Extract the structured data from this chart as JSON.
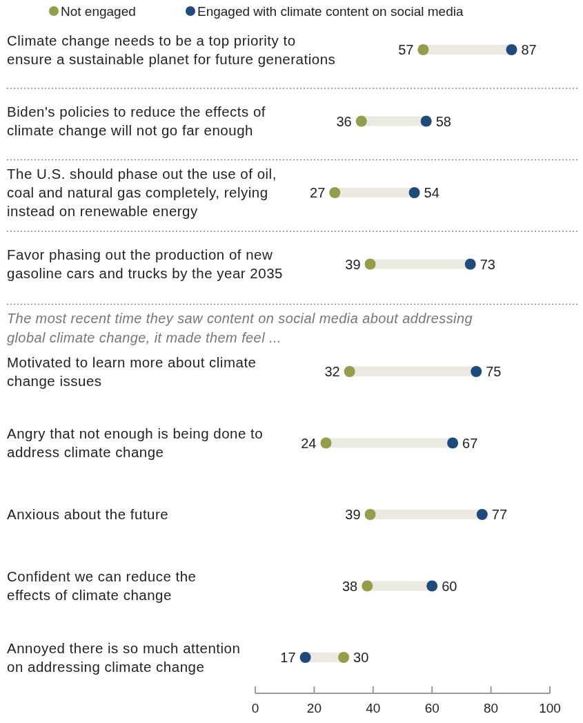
{
  "chart_data": {
    "type": "scatter",
    "orientation": "horizontal",
    "categories": [
      "Climate change needs to be a top priority to\nensure a sustainable planet for future generations",
      "Biden's policies to reduce the effects of\nclimate change will not go far enough",
      "The U.S. should phase out the use of oil,\ncoal and natural gas completely, relying\ninstead on renewable energy",
      "Favor phasing out the production of new\ngasoline cars and trucks by the year 2035",
      "Motivated to learn more about climate\nchange issues",
      "Angry that not enough is being done to\naddress climate change",
      "Anxious about the future",
      "Confident we can reduce the\neffects of climate change",
      "Annoyed there is so much attention\non addressing climate change"
    ],
    "series": [
      {
        "name": "Not engaged",
        "color": "#959c4b",
        "values": [
          57,
          36,
          27,
          39,
          32,
          24,
          39,
          38,
          30
        ]
      },
      {
        "name": "Engaged with climate content on social media",
        "color": "#1f4a7c",
        "values": [
          87,
          58,
          54,
          73,
          75,
          67,
          77,
          60,
          17
        ]
      }
    ],
    "annotations": [
      "The most recent time they saw content on social media about addressing\nglobal climate change, it made them feel ..."
    ],
    "xlim": [
      0,
      100
    ],
    "xticks": [
      0,
      20,
      40,
      60,
      80,
      100
    ],
    "data_labels": true,
    "legend": "top",
    "grid": false,
    "marker": "circle"
  }
}
